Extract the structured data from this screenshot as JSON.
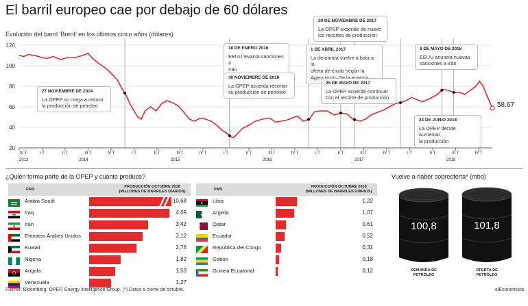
{
  "title": "El barril europeo cae por debajo de 60 dólares",
  "subtitle": "Evolución del barril ‘Brent’ en los últimos cinco años (dólares)",
  "chart_data": [
    {
      "type": "line",
      "title": "El barril europeo cae por debajo de 60 dólares",
      "subtitle": "Evolución del barril ‘Brent’ en los últimos cinco años (dólares)",
      "ylim": [
        20,
        120
      ],
      "yticks": [
        "120",
        "100",
        "80",
        "60",
        "40",
        "20"
      ],
      "xlim": [
        2013.75,
        2018.9
      ],
      "quarter_ticks": [
        "IV T",
        "I T",
        "II T",
        "III T",
        "IV T",
        "I T",
        "II T",
        "III T",
        "IV T",
        "I T",
        "II T",
        "III T",
        "IV T",
        "I T",
        "II T",
        "III T",
        "IV T",
        "I T",
        "II T",
        "III T",
        "IV T"
      ],
      "year_labels": [
        "2013",
        "2014",
        "2015",
        "2016",
        "2017",
        "2018"
      ],
      "last_value_label": "58,67",
      "series": [
        {
          "color": "#e42a2a",
          "points": [
            [
              2013.75,
              110
            ],
            [
              2013.8,
              109
            ],
            [
              2013.85,
              111
            ],
            [
              2013.92,
              110
            ],
            [
              2014.0,
              108
            ],
            [
              2014.05,
              107
            ],
            [
              2014.12,
              109
            ],
            [
              2014.2,
              106
            ],
            [
              2014.28,
              108
            ],
            [
              2014.36,
              108
            ],
            [
              2014.44,
              110
            ],
            [
              2014.5,
              112
            ],
            [
              2014.55,
              107
            ],
            [
              2014.62,
              102
            ],
            [
              2014.7,
              97
            ],
            [
              2014.78,
              90
            ],
            [
              2014.82,
              86
            ],
            [
              2014.86,
              79
            ],
            [
              2014.91,
              72
            ],
            [
              2014.96,
              62
            ],
            [
              2015.0,
              56
            ],
            [
              2015.04,
              50
            ],
            [
              2015.08,
              48
            ],
            [
              2015.12,
              56
            ],
            [
              2015.18,
              60
            ],
            [
              2015.24,
              56
            ],
            [
              2015.3,
              63
            ],
            [
              2015.36,
              66
            ],
            [
              2015.42,
              64
            ],
            [
              2015.48,
              61
            ],
            [
              2015.54,
              55
            ],
            [
              2015.6,
              48
            ],
            [
              2015.66,
              46
            ],
            [
              2015.72,
              49
            ],
            [
              2015.78,
              48
            ],
            [
              2015.84,
              46
            ],
            [
              2015.9,
              42
            ],
            [
              2015.96,
              37
            ],
            [
              2016.0,
              35
            ],
            [
              2016.05,
              31
            ],
            [
              2016.08,
              30
            ],
            [
              2016.12,
              33
            ],
            [
              2016.18,
              39
            ],
            [
              2016.25,
              42
            ],
            [
              2016.32,
              46
            ],
            [
              2016.4,
              48
            ],
            [
              2016.48,
              49
            ],
            [
              2016.54,
              45
            ],
            [
              2016.6,
              46
            ],
            [
              2016.66,
              47
            ],
            [
              2016.72,
              49
            ],
            [
              2016.78,
              51
            ],
            [
              2016.84,
              46
            ],
            [
              2016.91,
              48
            ],
            [
              2016.96,
              55
            ],
            [
              2017.02,
              56
            ],
            [
              2017.1,
              56
            ],
            [
              2017.18,
              52
            ],
            [
              2017.25,
              54
            ],
            [
              2017.32,
              53
            ],
            [
              2017.38,
              48
            ],
            [
              2017.46,
              46
            ],
            [
              2017.52,
              48
            ],
            [
              2017.58,
              52
            ],
            [
              2017.66,
              55
            ],
            [
              2017.72,
              57
            ],
            [
              2017.78,
              60
            ],
            [
              2017.84,
              63
            ],
            [
              2017.9,
              64
            ],
            [
              2017.96,
              66
            ],
            [
              2018.02,
              69
            ],
            [
              2018.08,
              67
            ],
            [
              2018.14,
              65
            ],
            [
              2018.22,
              68
            ],
            [
              2018.3,
              72
            ],
            [
              2018.36,
              77
            ],
            [
              2018.42,
              76
            ],
            [
              2018.48,
              74
            ],
            [
              2018.55,
              74
            ],
            [
              2018.6,
              72
            ],
            [
              2018.66,
              76
            ],
            [
              2018.72,
              80
            ],
            [
              2018.76,
              85
            ],
            [
              2018.8,
              80
            ],
            [
              2018.84,
              71
            ],
            [
              2018.88,
              63
            ],
            [
              2018.9,
              58.67
            ]
          ]
        }
      ],
      "event_markers": [
        2014.9,
        2016.04,
        2016.9,
        2017.25,
        2017.4,
        2017.9,
        2018.35,
        2018.48
      ]
    },
    {
      "type": "bar",
      "title": "¿Quién forma parte de la OPEP y cuánto produce?",
      "columns": [
        "PAÍS",
        "PRODUCCIÓN OCTUBRE 2018 (MILLONES DE BARRILES DIARIOS)"
      ],
      "categories": [
        "Arabia Saudí",
        "Iraq",
        "Irán",
        "Emiratos Árabes Unidos",
        "Kuwait",
        "Nigeria",
        "Angola",
        "Venezuela",
        "Libia",
        "Argelia",
        "Qatar",
        "Ecuador",
        "República del Congo",
        "Gabón",
        "Guinea Ecuatorial"
      ],
      "values": [
        10.68,
        4.69,
        3.42,
        3.12,
        2.76,
        1.82,
        1.53,
        1.27,
        1.22,
        1.07,
        0.61,
        0.52,
        0.32,
        0.18,
        0.12
      ],
      "value_labels": [
        "10,68",
        "4,69",
        "3,42",
        "3,12",
        "2,76",
        "1,82",
        "1,53",
        "1,27",
        "1,22",
        "1,07",
        "0,61",
        "0,52",
        "0,32",
        "0,18",
        "0,12"
      ]
    },
    {
      "type": "bar",
      "title": "Vuelve a haber sobreoferta* (mbd)",
      "categories": [
        "DEMANDA DE PETRÓLEO",
        "OFERTA DE PETRÓLEO"
      ],
      "values": [
        100.8,
        101.8
      ],
      "value_labels": [
        "100,8",
        "101,8"
      ]
    }
  ],
  "annotations": [
    {
      "date": "27 NOVIEMBRE DE 2014",
      "text": "La OPEP so niega a reducir\nla producción de petróleo"
    },
    {
      "date": "16 DE ENERO 2016",
      "text": "EEUU levanta sanciones a\nIrán"
    },
    {
      "date": "30 NOVIEMBRE DE 2016",
      "text": "La OPEP acuerda recortar\nsu producción de petróleo"
    },
    {
      "date": "1 DE ABRIL 2017",
      "text": "La demanda vuelve a batir a la\noferta de crudo según la\nAgencia Int. De la energía"
    },
    {
      "date": "30 DE NOVIEMBRE DE 2017",
      "text": "La OPEP extiende de nuevo\nlos recortes de producción"
    },
    {
      "date": "25 DE MAYO DE 2017",
      "text": "La OPEP acuerda continuar\ncon el recorte de producción"
    },
    {
      "date": "8 DE MAYO DE 2018",
      "text": "EEUU anuncia nuevas\nsanciones a Irán"
    },
    {
      "date": "23 DE JUNIO 2018",
      "text": "La OPEP decide aumentar\nla producción"
    }
  ],
  "opec": {
    "title": "¿Quién forma parte de la OPEP y cuánto produce?",
    "col_country": "PAÍS",
    "col_prod": "PRODUCCIÓN OCTUBRE 2018\n(MILLONES DE BARRILES DIARIOS)",
    "left": [
      {
        "name": "Arabia Saudí",
        "value": 10.68,
        "label": "10,68",
        "flag": "sa"
      },
      {
        "name": "Iraq",
        "value": 4.69,
        "label": "4,69",
        "flag": "iq"
      },
      {
        "name": "Irán",
        "value": 3.42,
        "label": "3,42",
        "flag": "ir"
      },
      {
        "name": "Emiratos Árabes Unidos",
        "value": 3.12,
        "label": "3,12",
        "flag": "ae"
      },
      {
        "name": "Kuwait",
        "value": 2.76,
        "label": "2,76",
        "flag": "kw"
      },
      {
        "name": "Nigeria",
        "value": 1.82,
        "label": "1,82",
        "flag": "ng"
      },
      {
        "name": "Angola",
        "value": 1.53,
        "label": "1,53",
        "flag": "ao"
      },
      {
        "name": "Venezuela",
        "value": 1.27,
        "label": "1,27",
        "flag": "ve"
      }
    ],
    "right": [
      {
        "name": "Libia",
        "value": 1.22,
        "label": "1,22",
        "flag": "ly"
      },
      {
        "name": "Argelia",
        "value": 1.07,
        "label": "1,07",
        "flag": "dz"
      },
      {
        "name": "Qatar",
        "value": 0.61,
        "label": "0,61",
        "flag": "qa"
      },
      {
        "name": "Ecuador",
        "value": 0.52,
        "label": "0,52",
        "flag": "ec"
      },
      {
        "name": "República del Congo",
        "value": 0.32,
        "label": "0,32",
        "flag": "cg"
      },
      {
        "name": "Gabón",
        "value": 0.18,
        "label": "0,18",
        "flag": "ga"
      },
      {
        "name": "Guinea Ecuatorial",
        "value": 0.12,
        "label": "0,12",
        "flag": "gq"
      }
    ]
  },
  "barrels": {
    "title": "Vuelve a haber sobreoferta* (mbd)",
    "items": [
      {
        "label": "DEMANDA DE\nPETRÓLEO",
        "value": 100.8,
        "value_label": "100,8"
      },
      {
        "label": "OFERTA DE\nPETRÓLEO",
        "value": 101.8,
        "value_label": "101,8"
      }
    ]
  },
  "footer": "Fuente: Bloomberg, OPEP, Energy Intelligence Group. (*) Datos a cierre de octubre.",
  "brand": "elEconomista",
  "colors": {
    "accent": "#e42a2a",
    "header_bg": "#dcdcdc",
    "barrel": "#111111"
  }
}
